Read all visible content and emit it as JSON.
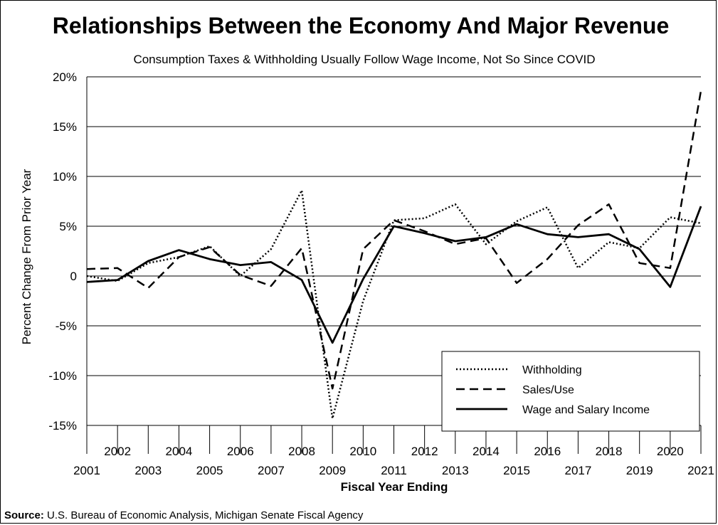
{
  "chart_data": {
    "type": "line",
    "title": "Relationships Between the Economy And Major Revenue",
    "subtitle": "Consumption Taxes & Withholding Usually Follow Wage Income, Not So Since COVID",
    "xlabel": "Fiscal Year Ending",
    "ylabel": "Percent Change From Prior Year",
    "x": [
      2001,
      2002,
      2003,
      2004,
      2005,
      2006,
      2007,
      2008,
      2009,
      2010,
      2011,
      2012,
      2013,
      2014,
      2015,
      2016,
      2017,
      2018,
      2019,
      2020,
      2021
    ],
    "x_tick_labels_upper": [
      "2002",
      "2004",
      "2006",
      "2008",
      "2010",
      "2012",
      "2014",
      "2016",
      "2018",
      "2020"
    ],
    "x_tick_labels_lower": [
      "2001",
      "2003",
      "2005",
      "2007",
      "2009",
      "2011",
      "2013",
      "2015",
      "2017",
      "2019",
      "2021"
    ],
    "ylim": [
      -15,
      20
    ],
    "y_ticks": [
      20,
      15,
      10,
      5,
      0,
      -5,
      -10,
      -15
    ],
    "y_tick_labels": [
      "20%",
      "15%",
      "10%",
      "5%",
      "0",
      "-5%",
      "-10%",
      "-15%"
    ],
    "grid": "horizontal",
    "legend_position": "bottom-right",
    "series": [
      {
        "name": "Withholding",
        "style": "dotted",
        "values": [
          0.0,
          -0.5,
          1.3,
          1.9,
          3.0,
          0.0,
          2.7,
          8.6,
          -14.3,
          -2.5,
          5.6,
          5.8,
          7.2,
          3.2,
          5.5,
          6.9,
          0.8,
          3.4,
          2.8,
          5.9,
          5.3
        ]
      },
      {
        "name": "Sales/Use",
        "style": "dashed",
        "values": [
          0.7,
          0.8,
          -1.2,
          1.9,
          2.9,
          0.1,
          -1.0,
          2.8,
          -11.3,
          2.7,
          5.6,
          4.5,
          3.2,
          3.8,
          -0.7,
          1.7,
          5.1,
          7.2,
          1.3,
          0.8,
          18.6
        ]
      },
      {
        "name": "Wage and Salary Income",
        "style": "solid",
        "values": [
          -0.6,
          -0.4,
          1.5,
          2.6,
          1.7,
          1.1,
          1.4,
          -0.4,
          -6.7,
          -0.3,
          5.0,
          4.3,
          3.5,
          3.9,
          5.2,
          4.2,
          3.9,
          4.2,
          2.7,
          -1.1,
          7.0
        ]
      }
    ]
  },
  "source": {
    "label": "Source:",
    "text": " U.S. Bureau of Economic Analysis, Michigan Senate Fiscal Agency"
  }
}
